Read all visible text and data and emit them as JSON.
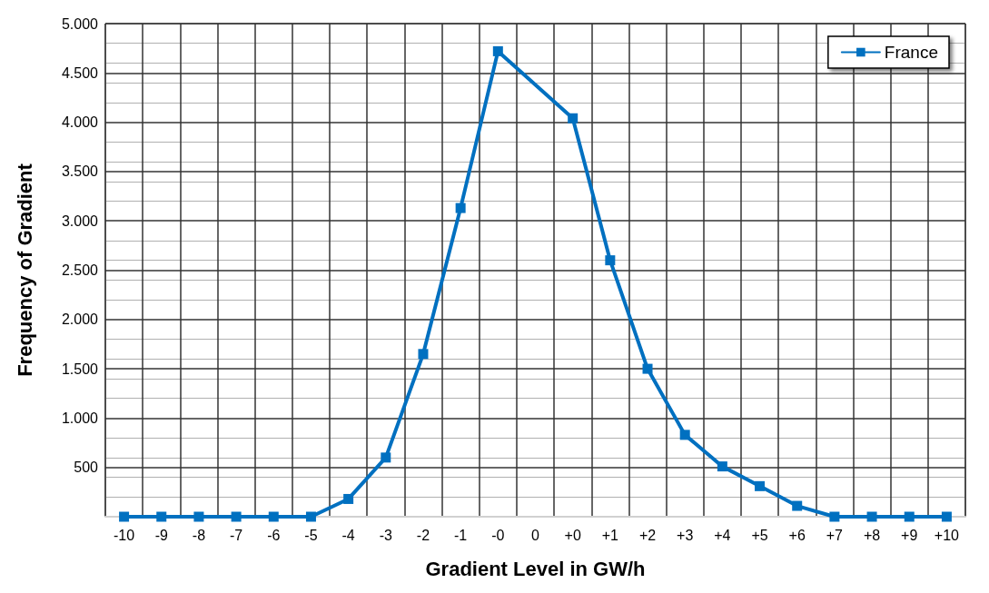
{
  "chart_data": {
    "type": "line",
    "xlabel": "Gradient Level in GW/h",
    "ylabel": "Frequency of Gradient",
    "categories": [
      "-10",
      "-9",
      "-8",
      "-7",
      "-6",
      "-5",
      "-4",
      "-3",
      "-2",
      "-1",
      "-0",
      "0",
      "+0",
      "+1",
      "+2",
      "+3",
      "+4",
      "+5",
      "+6",
      "+7",
      "+8",
      "+9",
      "+10"
    ],
    "series": [
      {
        "name": "France",
        "color": "#0070c0",
        "values": [
          0,
          0,
          0,
          0,
          0,
          0,
          180,
          600,
          1650,
          3130,
          4720,
          null,
          4040,
          2600,
          1500,
          830,
          510,
          310,
          110,
          0,
          0,
          0,
          0
        ]
      }
    ],
    "ylim": [
      0,
      5000
    ],
    "yticks": [
      {
        "value": 0,
        "label": null
      },
      500,
      {
        "value": 1000,
        "label": "1.000"
      },
      {
        "value": 1500,
        "label": "1.500"
      },
      {
        "value": 2000,
        "label": "2.000"
      },
      {
        "value": 2500,
        "label": "2.500"
      },
      {
        "value": 3000,
        "label": "3.000"
      },
      {
        "value": 3500,
        "label": "3.500"
      },
      {
        "value": 4000,
        "label": "4.000"
      },
      {
        "value": 4500,
        "label": "4.500"
      },
      {
        "value": 5000,
        "label": "5.000"
      }
    ],
    "grid": true,
    "legend": "top right",
    "marker": "square",
    "line_style": "solid"
  }
}
